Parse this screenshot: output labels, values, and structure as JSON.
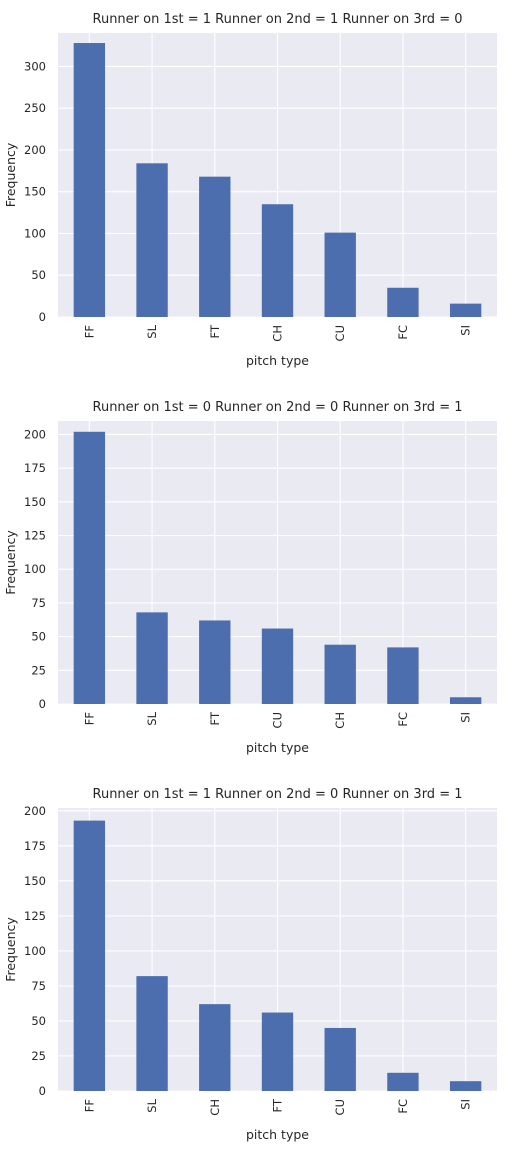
{
  "chart_data": [
    {
      "type": "bar",
      "title": "Runner on 1st = 1  Runner on 2nd = 1  Runner on 3rd = 0",
      "xlabel": "pitch type",
      "ylabel": "Frequency",
      "categories": [
        "FF",
        "SL",
        "FT",
        "CH",
        "CU",
        "FC",
        "SI"
      ],
      "values": [
        328,
        184,
        168,
        135,
        101,
        35,
        16
      ],
      "ylim": [
        0,
        340
      ],
      "yticks": [
        0,
        50,
        100,
        150,
        200,
        250,
        300
      ],
      "grid": true,
      "bar_color": "#4c6eae",
      "background": "#eaeaf2"
    },
    {
      "type": "bar",
      "title": "Runner on 1st = 0  Runner on 2nd = 0  Runner on 3rd = 1",
      "xlabel": "pitch type",
      "ylabel": "Frequency",
      "categories": [
        "FF",
        "SL",
        "FT",
        "CU",
        "CH",
        "FC",
        "SI"
      ],
      "values": [
        202,
        68,
        62,
        56,
        44,
        42,
        5
      ],
      "ylim": [
        0,
        210
      ],
      "yticks": [
        0,
        25,
        50,
        75,
        100,
        125,
        150,
        175,
        200
      ],
      "grid": true,
      "bar_color": "#4c6eae",
      "background": "#eaeaf2"
    },
    {
      "type": "bar",
      "title": "Runner on 1st = 1  Runner on 2nd = 0  Runner on 3rd = 1",
      "xlabel": "pitch type",
      "ylabel": "Frequency",
      "categories": [
        "FF",
        "SL",
        "CH",
        "FT",
        "CU",
        "FC",
        "SI"
      ],
      "values": [
        193,
        82,
        62,
        56,
        45,
        13,
        7
      ],
      "ylim": [
        0,
        202
      ],
      "yticks": [
        0,
        25,
        50,
        75,
        100,
        125,
        150,
        175,
        200
      ],
      "grid": true,
      "bar_color": "#4c6eae",
      "background": "#eaeaf2"
    }
  ]
}
